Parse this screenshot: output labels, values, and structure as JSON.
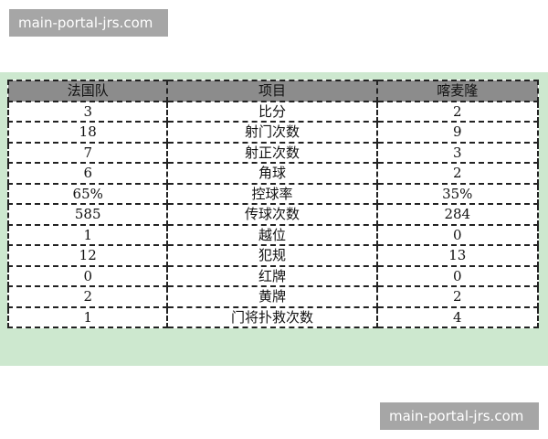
{
  "watermark": "main-portal-jrs.com",
  "colors": {
    "band": "#cde8cf",
    "header": "#8c8c8c"
  },
  "table": {
    "headers": [
      "法国队",
      "项目",
      "喀麦隆"
    ],
    "rows": [
      [
        "3",
        "比分",
        "2"
      ],
      [
        "18",
        "射门次数",
        "9"
      ],
      [
        "7",
        "射正次数",
        "3"
      ],
      [
        "6",
        "角球",
        "2"
      ],
      [
        "65%",
        "控球率",
        "35%"
      ],
      [
        "585",
        "传球次数",
        "284"
      ],
      [
        "1",
        "越位",
        "0"
      ],
      [
        "12",
        "犯规",
        "13"
      ],
      [
        "0",
        "红牌",
        "0"
      ],
      [
        "2",
        "黄牌",
        "2"
      ],
      [
        "1",
        "门将扑救次数",
        "4"
      ]
    ]
  }
}
